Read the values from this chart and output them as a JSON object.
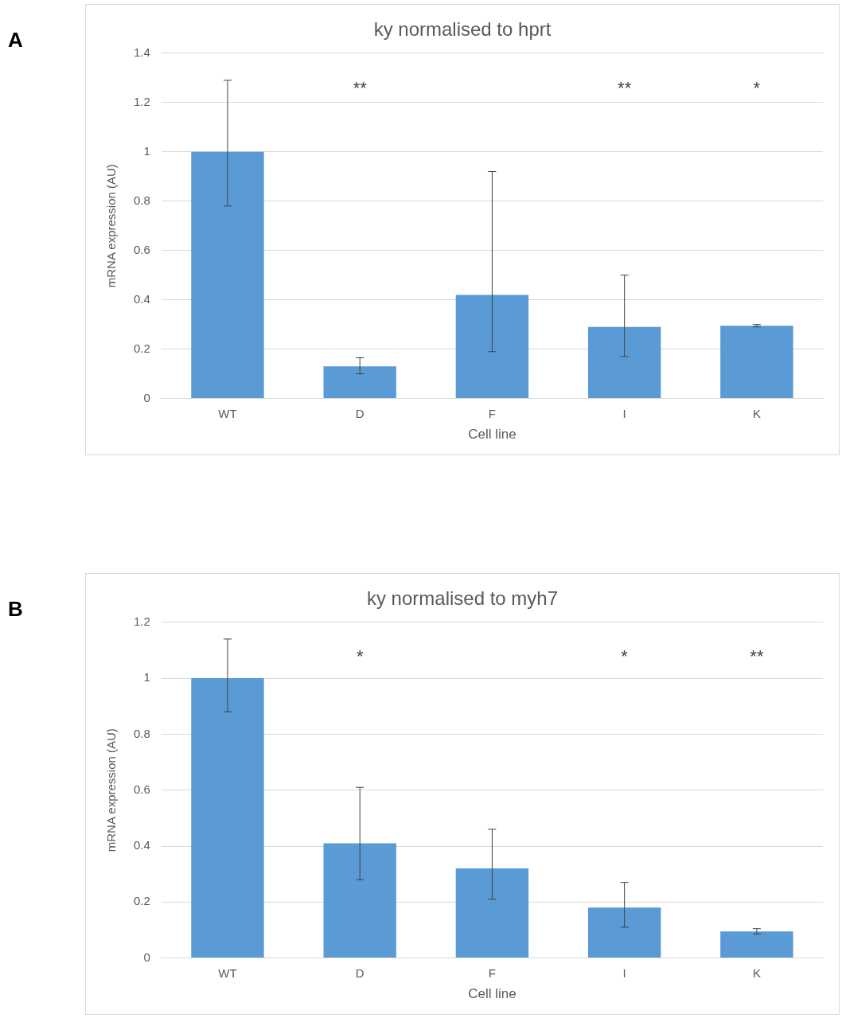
{
  "chart_data": [
    {
      "type": "bar",
      "title": "ky normalised to hprt",
      "xlabel": "Cell line",
      "ylabel": "mRNA expression (AU)",
      "categories": [
        "WT",
        "D",
        "F",
        "I",
        "K"
      ],
      "values": [
        1.0,
        0.13,
        0.42,
        0.29,
        0.295
      ],
      "color": "#5b9bd5",
      "errors": [
        [
          0.78,
          1.29
        ],
        [
          0.1,
          0.165
        ],
        [
          0.19,
          0.92
        ],
        [
          0.17,
          0.5
        ],
        [
          0.29,
          0.3
        ]
      ],
      "ylim": [
        0,
        1.4
      ],
      "yticks": [
        0,
        0.2,
        0.4,
        0.6,
        0.8,
        1,
        1.2,
        1.4
      ],
      "grid": "y",
      "legend": false,
      "annotations": [
        "A",
        "**",
        "**",
        "*"
      ]
    },
    {
      "type": "bar",
      "title": "ky normalised to myh7",
      "xlabel": "Cell line",
      "ylabel": "mRNA expression (AU)",
      "categories": [
        "WT",
        "D",
        "F",
        "I",
        "K"
      ],
      "values": [
        1.0,
        0.41,
        0.32,
        0.18,
        0.095
      ],
      "color": "#5b9bd5",
      "errors": [
        [
          0.88,
          1.14
        ],
        [
          0.28,
          0.61
        ],
        [
          0.21,
          0.46
        ],
        [
          0.11,
          0.27
        ],
        [
          0.085,
          0.105
        ]
      ],
      "ylim": [
        0,
        1.2
      ],
      "yticks": [
        0,
        0.2,
        0.4,
        0.6,
        0.8,
        1,
        1.2
      ],
      "grid": "y",
      "legend": false,
      "annotations": [
        "B",
        "*",
        "*",
        "**"
      ]
    }
  ]
}
